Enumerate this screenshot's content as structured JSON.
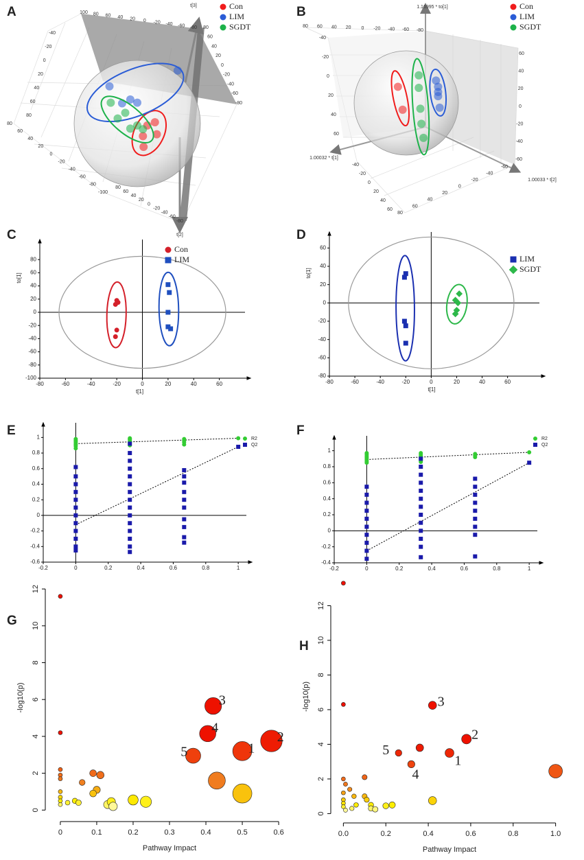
{
  "chart_data": [
    {
      "type": "scatter3d",
      "panel": "A",
      "series": [
        {
          "name": "Con",
          "color": "#f01c1c",
          "x": [
            28,
            16,
            31,
            9,
            10
          ],
          "y": [
            2,
            -3,
            -17,
            -20,
            -37
          ]
        },
        {
          "name": "LIM",
          "color": "#2a5cd6",
          "x": [
            64,
            -44,
            -24,
            -11,
            0
          ],
          "y": [
            84,
            59,
            32,
            38,
            33
          ]
        },
        {
          "name": "SGDT",
          "color": "#1db24a",
          "x": [
            -42,
            -19,
            0,
            -11,
            9,
            -31
          ],
          "y": [
            33,
            17,
            -3,
            -8,
            -9,
            8
          ]
        }
      ],
      "xlim": [
        -100,
        100
      ],
      "ylim": [
        -100,
        100
      ],
      "group_ellipses": true,
      "axes3d": [
        {
          "label": "t[3]",
          "ticks": [
            100,
            80,
            60,
            40,
            20,
            0,
            -20,
            -40,
            -60,
            -80
          ]
        },
        {
          "ticks": [
            -40,
            -20,
            0,
            20,
            40,
            60,
            80
          ]
        },
        {
          "ticks": [
            80,
            60,
            40,
            20,
            0,
            -20,
            -40,
            -60,
            -80,
            -100
          ]
        },
        {
          "label": "t[2]",
          "ticks": [
            80,
            60,
            40,
            20,
            0,
            -20,
            -40,
            -60,
            -80
          ]
        },
        {
          "ticks": [
            -80,
            -60,
            -40,
            -20,
            0,
            20,
            40,
            60,
            80
          ]
        }
      ]
    },
    {
      "type": "scatter3d",
      "panel": "B",
      "series": [
        {
          "name": "Con",
          "color": "#f01c1c",
          "x": [
            -16,
            -7
          ],
          "y": [
            31,
            -13
          ]
        },
        {
          "name": "LIM",
          "color": "#2a5cd6",
          "x": [
            57,
            61,
            61,
            61,
            64
          ],
          "y": [
            43,
            31,
            21,
            13,
            -9
          ]
        },
        {
          "name": "SGDT",
          "color": "#1db24a",
          "x": [
            24,
            24,
            27,
            29,
            33
          ],
          "y": [
            53,
            29,
            -11,
            -40,
            -67
          ]
        }
      ],
      "xlim": [
        -100,
        100
      ],
      "ylim": [
        -100,
        100
      ],
      "group_ellipses": true,
      "axes3d": [
        {
          "label": "1.16995 * to[1]",
          "ticks": [
            80,
            60,
            40,
            20,
            0,
            -20,
            -40,
            -60,
            -80
          ]
        },
        {
          "ticks": [
            60,
            40,
            20,
            0,
            -20,
            -40,
            -60
          ]
        },
        {
          "ticks": [
            -40,
            -20,
            0,
            20,
            40,
            60
          ]
        },
        {
          "label": "1.00032 * t[1]",
          "ticks": [
            -40,
            -20,
            0,
            20,
            40,
            60
          ]
        },
        {
          "label": "1.00033 * t[2]",
          "ticks": [
            80,
            60,
            40,
            20,
            0,
            -20,
            -40,
            -60
          ]
        }
      ]
    },
    {
      "type": "scatter",
      "panel": "C",
      "xlabel": "t[1]",
      "ylabel": "to[1]",
      "series": [
        {
          "name": "Con",
          "color": "#d4202a",
          "marker": "circle",
          "x": [
            -20,
            -19,
            -21,
            -20,
            -21
          ],
          "y": [
            18,
            15,
            12,
            -27,
            -37
          ]
        },
        {
          "name": "LIM",
          "color": "#1f4fbf",
          "marker": "square",
          "x": [
            20,
            21,
            20,
            20,
            22
          ],
          "y": [
            42,
            30,
            0,
            -22,
            -25
          ]
        }
      ],
      "xlim": [
        -80,
        80
      ],
      "ylim": [
        -100,
        100
      ],
      "xticks": [
        -80,
        -60,
        -40,
        -20,
        0,
        20,
        40,
        60
      ],
      "yticks": [
        -100,
        -80,
        -60,
        -40,
        -20,
        0,
        20,
        40,
        60,
        80
      ],
      "t2_ellipse": [
        65,
        85
      ],
      "group_ellipses": true
    },
    {
      "type": "scatter",
      "panel": "D",
      "xlabel": "t[1]",
      "ylabel": "to[1]",
      "series": [
        {
          "name": "LIM",
          "color": "#1a2fb0",
          "marker": "square",
          "x": [
            -20,
            -21,
            -21,
            -20,
            -20
          ],
          "y": [
            32,
            28,
            -20,
            -25,
            -44
          ]
        },
        {
          "name": "SGDT",
          "color": "#2db84a",
          "marker": "diamond",
          "x": [
            22,
            19,
            21,
            20,
            19
          ],
          "y": [
            10,
            3,
            0,
            -8,
            -12
          ]
        }
      ],
      "xlim": [
        -80,
        85
      ],
      "ylim": [
        -80,
        70
      ],
      "xticks": [
        -80,
        -60,
        -40,
        -20,
        0,
        20,
        40,
        60
      ],
      "yticks": [
        -80,
        -60,
        -40,
        -20,
        0,
        20,
        40,
        60
      ],
      "t2_ellipse": [
        65,
        72
      ],
      "group_ellipses": true
    },
    {
      "type": "scatter",
      "panel": "E",
      "series": [
        {
          "name": "R2",
          "color": "#33cc33",
          "marker": "circle",
          "x": [
            0,
            0,
            0,
            0,
            0,
            0,
            0,
            0.333,
            0.333,
            0.333,
            0.333,
            0.333,
            0.333,
            0.667,
            0.667,
            0.667,
            0.667,
            1
          ],
          "y": [
            0.98,
            0.96,
            0.95,
            0.93,
            0.91,
            0.89,
            0.86,
            0.99,
            0.98,
            0.97,
            0.95,
            0.93,
            0.9,
            0.98,
            0.96,
            0.94,
            0.91,
            0.99
          ]
        },
        {
          "name": "Q2",
          "color": "#1a1aaa",
          "marker": "square",
          "x": [
            0,
            0,
            0,
            0,
            0,
            0,
            0,
            0,
            0,
            0,
            0,
            0,
            0.333,
            0.333,
            0.333,
            0.333,
            0.333,
            0.333,
            0.333,
            0.333,
            0.333,
            0.333,
            0.333,
            0.333,
            0.333,
            0.333,
            0.333,
            0.667,
            0.667,
            0.667,
            0.667,
            0.667,
            0.667,
            0.667,
            0.667,
            0.667,
            0.667,
            1
          ],
          "y": [
            0.62,
            0.5,
            0.4,
            0.3,
            0.2,
            0.1,
            0,
            -0.1,
            -0.2,
            -0.3,
            -0.4,
            -0.45,
            0.92,
            0.8,
            0.7,
            0.6,
            0.5,
            0.4,
            0.3,
            0.2,
            0.1,
            0,
            -0.1,
            -0.2,
            -0.3,
            -0.4,
            -0.47,
            0.58,
            0.5,
            0.42,
            0.3,
            0.2,
            0.1,
            -0.05,
            -0.15,
            -0.28,
            -0.35,
            0.88
          ]
        }
      ],
      "fit_lines": [
        {
          "x": [
            0,
            1
          ],
          "y": [
            0.92,
            0.99
          ]
        },
        {
          "x": [
            0,
            1
          ],
          "y": [
            -0.12,
            0.88
          ]
        }
      ],
      "xlim": [
        -0.2,
        1.05
      ],
      "ylim": [
        -0.6,
        1.1
      ],
      "xticks": [
        -0.2,
        0,
        0.2,
        0.4,
        0.6,
        0.8,
        1
      ],
      "yticks": [
        -0.6,
        -0.4,
        -0.2,
        0,
        0.2,
        0.4,
        0.6,
        0.8,
        1
      ]
    },
    {
      "type": "scatter",
      "panel": "F",
      "series": [
        {
          "name": "R2",
          "color": "#33cc33",
          "marker": "circle",
          "x": [
            0,
            0,
            0,
            0,
            0,
            0,
            0,
            0.333,
            0.333,
            0.333,
            0.333,
            0.333,
            0.333,
            0.667,
            0.667,
            0.667,
            1
          ],
          "y": [
            0.97,
            0.95,
            0.93,
            0.91,
            0.89,
            0.87,
            0.85,
            0.97,
            0.95,
            0.93,
            0.91,
            0.88,
            0.86,
            0.96,
            0.94,
            0.92,
            0.98
          ]
        },
        {
          "name": "Q2",
          "color": "#1a1aaa",
          "marker": "square",
          "x": [
            0,
            0,
            0,
            0,
            0,
            0,
            0,
            0,
            0,
            0,
            0.333,
            0.333,
            0.333,
            0.333,
            0.333,
            0.333,
            0.333,
            0.333,
            0.333,
            0.333,
            0.333,
            0.333,
            0.333,
            0.667,
            0.667,
            0.667,
            0.667,
            0.667,
            0.667,
            0.667,
            0.667,
            0.667,
            1
          ],
          "y": [
            0.55,
            0.45,
            0.35,
            0.25,
            0.15,
            0.05,
            -0.05,
            -0.15,
            -0.25,
            -0.35,
            0.9,
            0.8,
            0.7,
            0.6,
            0.5,
            0.4,
            0.3,
            0.2,
            0.1,
            0,
            -0.1,
            -0.2,
            -0.33,
            0.65,
            0.55,
            0.45,
            0.35,
            0.25,
            0.15,
            0.05,
            -0.05,
            -0.32,
            0.85
          ]
        }
      ],
      "fit_lines": [
        {
          "x": [
            0,
            1
          ],
          "y": [
            0.89,
            0.98
          ]
        },
        {
          "x": [
            0,
            1
          ],
          "y": [
            -0.25,
            0.85
          ]
        }
      ],
      "xlim": [
        -0.2,
        1.05
      ],
      "ylim": [
        -0.4,
        1.1
      ],
      "xticks": [
        -0.2,
        0,
        0.2,
        0.4,
        0.6,
        0.8,
        1
      ],
      "yticks": [
        -0.4,
        -0.2,
        0,
        0.2,
        0.4,
        0.6,
        0.8,
        1
      ]
    },
    {
      "type": "bubble",
      "panel": "G",
      "xlabel": "Pathway Impact",
      "ylabel": "-log10(p)",
      "x": [
        0,
        0,
        0,
        0,
        0,
        0,
        0,
        0,
        0,
        0.06,
        0.09,
        0.11,
        0.1,
        0.09,
        0.02,
        0.04,
        0.05,
        0.13,
        0.14,
        0.145,
        0.2,
        0.235,
        0.365,
        0.405,
        0.42,
        0.5,
        0.58,
        0.43,
        0.5
      ],
      "y": [
        11.6,
        4.2,
        2.2,
        1.9,
        1.7,
        1,
        0.7,
        0.5,
        0.3,
        1.5,
        2,
        1.9,
        1.1,
        0.9,
        0.4,
        0.5,
        0.4,
        0.3,
        0.45,
        0.2,
        0.55,
        0.45,
        2.95,
        4.15,
        5.65,
        3.2,
        3.75,
        1.6,
        0.9
      ],
      "bubble_scale": 22,
      "color_scale": [
        {
          "value": 0,
          "color": "#ffffff"
        },
        {
          "value": 0.5,
          "color": "#ffee00"
        },
        {
          "value": 1.5,
          "color": "#f08020"
        },
        {
          "value": 4,
          "color": "#ee1100"
        }
      ],
      "annotations": [
        {
          "text": "3",
          "x": 0.445,
          "y": 5.9
        },
        {
          "text": "4",
          "x": 0.425,
          "y": 4.4
        },
        {
          "text": "5",
          "x": 0.34,
          "y": 3.1
        },
        {
          "text": "1",
          "x": 0.525,
          "y": 3.3
        },
        {
          "text": "2",
          "x": 0.605,
          "y": 3.9
        }
      ],
      "xlim": [
        -0.03,
        0.63
      ],
      "ylim": [
        -0.4,
        12.6
      ],
      "xticks": [
        0,
        0.1,
        0.2,
        0.3,
        0.4,
        0.5,
        0.6
      ],
      "yticks": [
        0,
        2,
        4,
        6,
        8,
        10,
        12
      ]
    },
    {
      "type": "bubble",
      "panel": "H",
      "xlabel": "Pathway Impact",
      "ylabel": "-log10(p)",
      "x": [
        0,
        0,
        0,
        0.01,
        0,
        0,
        0,
        0,
        0.01,
        0.04,
        0.06,
        0.03,
        0.05,
        0.1,
        0.1,
        0.11,
        0.13,
        0.13,
        0.15,
        0.2,
        0.23,
        0.26,
        0.32,
        0.36,
        0.42,
        0.5,
        0.58,
        0.42,
        1
      ],
      "y": [
        13.3,
        6.3,
        2,
        1.7,
        1.2,
        0.8,
        0.6,
        0.4,
        0.2,
        0.3,
        0.5,
        1.4,
        1,
        2.1,
        1,
        0.8,
        0.5,
        0.3,
        0.25,
        0.45,
        0.5,
        3.5,
        2.85,
        3.8,
        6.25,
        3.5,
        4.3,
        0.75,
        2.45
      ],
      "bubble_scale": 7,
      "color_scale": [
        {
          "value": 0,
          "color": "#ffffff"
        },
        {
          "value": 0.5,
          "color": "#ffee00"
        },
        {
          "value": 1.5,
          "color": "#f08020"
        },
        {
          "value": 4,
          "color": "#ee1100"
        }
      ],
      "annotations": [
        {
          "text": "3",
          "x": 0.46,
          "y": 6.4
        },
        {
          "text": "2",
          "x": 0.62,
          "y": 4.5
        },
        {
          "text": "5",
          "x": 0.2,
          "y": 3.6
        },
        {
          "text": "4",
          "x": 0.34,
          "y": 2.2
        },
        {
          "text": "1",
          "x": 0.54,
          "y": 3.0
        }
      ],
      "xlim": [
        -0.04,
        1.04
      ],
      "ylim": [
        -0.3,
        13.8
      ],
      "xticks": [
        {
          "value": 0,
          "label": "0.0"
        },
        {
          "value": 0.2,
          "label": "0.2"
        },
        {
          "value": 0.4,
          "label": "0.4"
        },
        {
          "value": 0.6,
          "label": "0.6"
        },
        {
          "value": 0.8,
          "label": "0.8"
        },
        {
          "value": 1,
          "label": "1.0"
        }
      ],
      "yticks": [
        0,
        2,
        4,
        6,
        8,
        10,
        12
      ]
    }
  ]
}
